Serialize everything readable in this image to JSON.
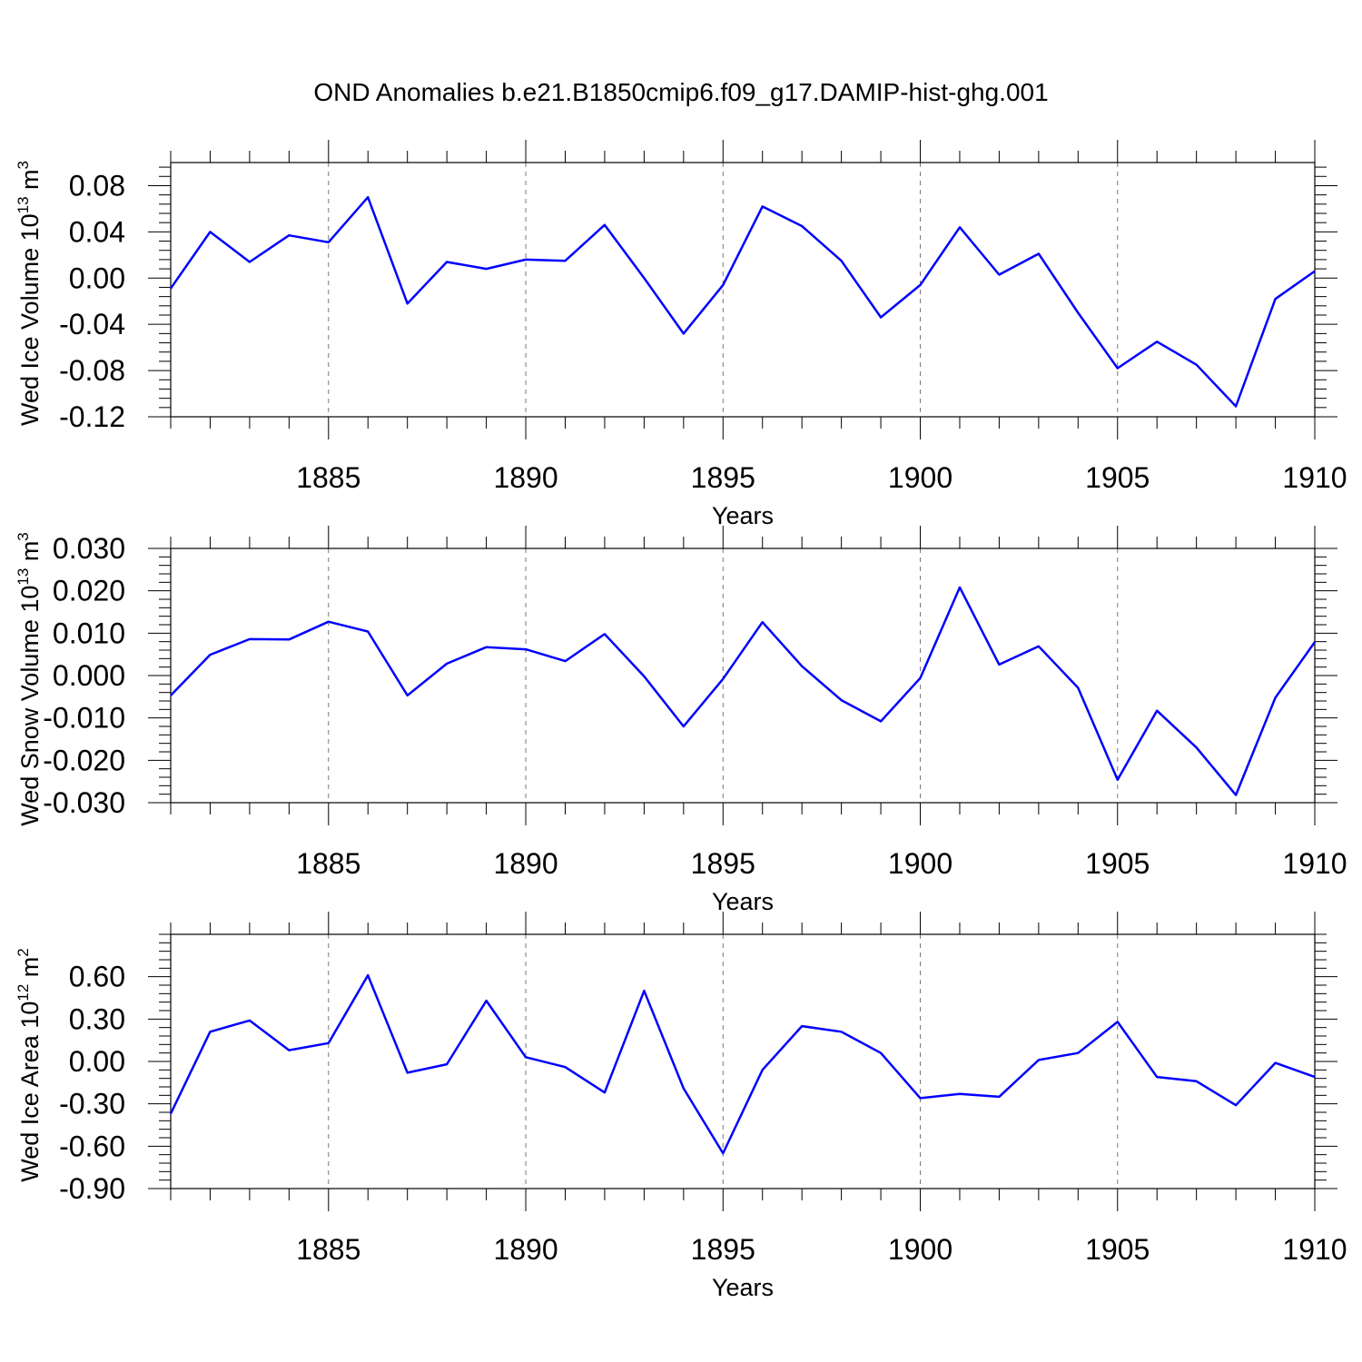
{
  "title": "OND Anomalies b.e21.B1850cmip6.f09_g17.DAMIP-hist-ghg.001",
  "colors": {
    "line": "#0000ff",
    "axis": "#000000",
    "grid": "#777777"
  },
  "chart_data": [
    {
      "type": "line",
      "ylabel": "Wed Ice Volume 10",
      "ylabel_exp": "13",
      "ylabel_unit": " m",
      "ylabel_unit_exp": "3",
      "xlabel": "Years",
      "xlim": [
        1881,
        1910
      ],
      "ylim": [
        -0.12,
        0.1
      ],
      "yticks": [
        -0.12,
        -0.08,
        -0.04,
        0.0,
        0.04,
        0.08
      ],
      "ytick_labels": [
        "-0.12",
        "-0.08",
        "-0.04",
        "0.00",
        "0.04",
        "0.08"
      ],
      "xticks": [
        1885,
        1890,
        1895,
        1900,
        1905,
        1910
      ],
      "xtick_labels": [
        "1885",
        "1890",
        "1895",
        "1900",
        "1905",
        "1910"
      ],
      "grid": "vertical dashed at major x ticks",
      "x": [
        1881,
        1882,
        1883,
        1884,
        1885,
        1886,
        1887,
        1888,
        1889,
        1890,
        1891,
        1892,
        1893,
        1894,
        1895,
        1896,
        1897,
        1898,
        1899,
        1900,
        1901,
        1902,
        1903,
        1904,
        1905,
        1906,
        1907,
        1908,
        1909,
        1910
      ],
      "series": [
        {
          "values": [
            -0.009,
            0.04,
            0.014,
            0.037,
            0.031,
            0.07,
            -0.022,
            0.014,
            0.008,
            0.016,
            0.015,
            0.046,
            0.0,
            -0.048,
            -0.006,
            0.062,
            0.045,
            0.015,
            -0.034,
            -0.006,
            0.044,
            0.003,
            0.021,
            -0.03,
            -0.078,
            -0.055,
            -0.075,
            -0.111,
            -0.018,
            0.006
          ]
        }
      ]
    },
    {
      "type": "line",
      "ylabel": "Wed Snow Volume 10",
      "ylabel_exp": "13",
      "ylabel_unit": " m",
      "ylabel_unit_exp": "3",
      "xlabel": "Years",
      "xlim": [
        1881,
        1910
      ],
      "ylim": [
        -0.03,
        0.03
      ],
      "yticks": [
        -0.03,
        -0.02,
        -0.01,
        0.0,
        0.01,
        0.02,
        0.03
      ],
      "ytick_labels": [
        "-0.030",
        "-0.020",
        "-0.010",
        "0.000",
        "0.010",
        "0.020",
        "0.030"
      ],
      "xticks": [
        1885,
        1890,
        1895,
        1900,
        1905,
        1910
      ],
      "xtick_labels": [
        "1885",
        "1890",
        "1895",
        "1900",
        "1905",
        "1910"
      ],
      "grid": "vertical dashed at major x ticks",
      "x": [
        1881,
        1882,
        1883,
        1884,
        1885,
        1886,
        1887,
        1888,
        1889,
        1890,
        1891,
        1892,
        1893,
        1894,
        1895,
        1896,
        1897,
        1898,
        1899,
        1900,
        1901,
        1902,
        1903,
        1904,
        1905,
        1906,
        1907,
        1908,
        1909,
        1910
      ],
      "series": [
        {
          "values": [
            -0.0047,
            0.0049,
            0.0086,
            0.0085,
            0.0127,
            0.0104,
            -0.0047,
            0.0028,
            0.0067,
            0.0062,
            0.0034,
            0.0098,
            -0.0002,
            -0.012,
            -0.0008,
            0.0126,
            0.0022,
            -0.0058,
            -0.0108,
            -0.0006,
            0.0208,
            0.0026,
            0.0069,
            -0.0029,
            -0.0246,
            -0.0083,
            -0.017,
            -0.0282,
            -0.0052,
            0.0079
          ]
        }
      ]
    },
    {
      "type": "line",
      "ylabel": "Wed Ice Area 10",
      "ylabel_exp": "12",
      "ylabel_unit": " m",
      "ylabel_unit_exp": "2",
      "xlabel": "Years",
      "xlim": [
        1881,
        1910
      ],
      "ylim": [
        -0.9,
        0.9
      ],
      "yticks": [
        -0.9,
        -0.6,
        -0.3,
        0.0,
        0.3,
        0.6
      ],
      "ytick_labels": [
        "-0.90",
        "-0.60",
        "-0.30",
        "0.00",
        "0.30",
        "0.60"
      ],
      "xticks": [
        1885,
        1890,
        1895,
        1900,
        1905,
        1910
      ],
      "xtick_labels": [
        "1885",
        "1890",
        "1895",
        "1900",
        "1905",
        "1910"
      ],
      "grid": "vertical dashed at major x ticks",
      "x": [
        1881,
        1882,
        1883,
        1884,
        1885,
        1886,
        1887,
        1888,
        1889,
        1890,
        1891,
        1892,
        1893,
        1894,
        1895,
        1896,
        1897,
        1898,
        1899,
        1900,
        1901,
        1902,
        1903,
        1904,
        1905,
        1906,
        1907,
        1908,
        1909,
        1910
      ],
      "series": [
        {
          "values": [
            -0.37,
            0.21,
            0.29,
            0.08,
            0.13,
            0.61,
            -0.08,
            -0.02,
            0.43,
            0.03,
            -0.04,
            -0.22,
            0.5,
            -0.19,
            -0.65,
            -0.06,
            0.25,
            0.21,
            0.06,
            -0.26,
            -0.23,
            -0.25,
            0.01,
            0.06,
            0.28,
            -0.11,
            -0.14,
            -0.31,
            -0.01,
            -0.11
          ]
        }
      ]
    }
  ]
}
